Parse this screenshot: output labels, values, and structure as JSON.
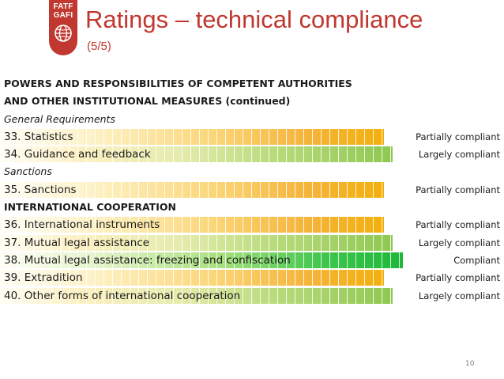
{
  "logo": {
    "line1": "FATF",
    "line2": "GAFI"
  },
  "header": {
    "title": "Ratings – technical compliance",
    "subtitle": "(5/5)"
  },
  "rows": [
    {
      "kind": "heading",
      "label": "POWERS AND RESPONSIBILITIES OF COMPETENT AUTHORITIES"
    },
    {
      "kind": "heading",
      "label": "AND OTHER INSTITUTIONAL MEASURES (continued)"
    },
    {
      "kind": "subheading",
      "label": "General Requirements"
    },
    {
      "kind": "rating",
      "label": "33. Statistics",
      "rating": "Partially compliant",
      "level": "partial"
    },
    {
      "kind": "rating",
      "label": "34. Guidance and feedback",
      "rating": "Largely compliant",
      "level": "largely"
    },
    {
      "kind": "subheading",
      "label": "Sanctions"
    },
    {
      "kind": "rating",
      "label": "35. Sanctions",
      "rating": "Partially compliant",
      "level": "partial"
    },
    {
      "kind": "heading",
      "label": "INTERNATIONAL COOPERATION"
    },
    {
      "kind": "rating",
      "label": "36. International instruments",
      "rating": "Partially compliant",
      "level": "partial"
    },
    {
      "kind": "rating",
      "label": "37. Mutual legal assistance",
      "rating": "Largely compliant",
      "level": "largely"
    },
    {
      "kind": "rating",
      "label": "38. Mutual legal assistance: freezing and confiscation",
      "rating": "Compliant",
      "level": "compliant"
    },
    {
      "kind": "rating",
      "label": "39. Extradition",
      "rating": "Partially compliant",
      "level": "partial"
    },
    {
      "kind": "rating",
      "label": "40. Other forms of international cooperation",
      "rating": "Largely compliant",
      "level": "largely"
    }
  ],
  "footer": {
    "page_number": "10"
  },
  "colors": {
    "brand_red": "#c0382f",
    "partially_compliant": "#f3b00b",
    "largely_compliant": "#8ec851",
    "compliant": "#1eb83a"
  }
}
